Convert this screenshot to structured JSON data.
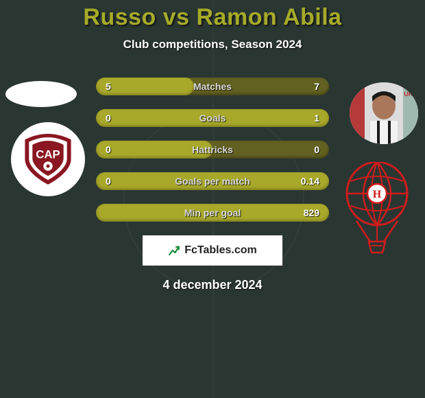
{
  "title": {
    "p1": "Russo",
    "vs": "vs",
    "p2": "Ramon Abila",
    "p1_color": "#a6ab29",
    "vs_color": "#a6ab29",
    "p2_color": "#a6ab29"
  },
  "subtitle": "Club competitions, Season 2024",
  "bars": {
    "track_color": "#636121",
    "fill_color": "#a8a82a",
    "rows": [
      {
        "label": "Matches",
        "left": "5",
        "right": "7",
        "fill_side": "left",
        "fill_pct": 42
      },
      {
        "label": "Goals",
        "left": "0",
        "right": "1",
        "fill_side": "right",
        "fill_pct": 100
      },
      {
        "label": "Hattricks",
        "left": "0",
        "right": "0",
        "fill_side": "left",
        "fill_pct": 50
      },
      {
        "label": "Goals per match",
        "left": "0",
        "right": "0.14",
        "fill_side": "right",
        "fill_pct": 100
      },
      {
        "label": "Min per goal",
        "left": "",
        "right": "829",
        "fill_side": "right",
        "fill_pct": 100
      }
    ]
  },
  "badge": {
    "text": "FcTables.com"
  },
  "date": "4 december 2024",
  "crests": {
    "left": {
      "name": "CAP",
      "primary": "#8a1721",
      "secondary": "#ffffff"
    },
    "right": {
      "name": "H",
      "primary": "#d01c1c",
      "secondary": "#ffffff"
    }
  },
  "colors": {
    "background": "#2a3632",
    "text": "#ffffff"
  }
}
